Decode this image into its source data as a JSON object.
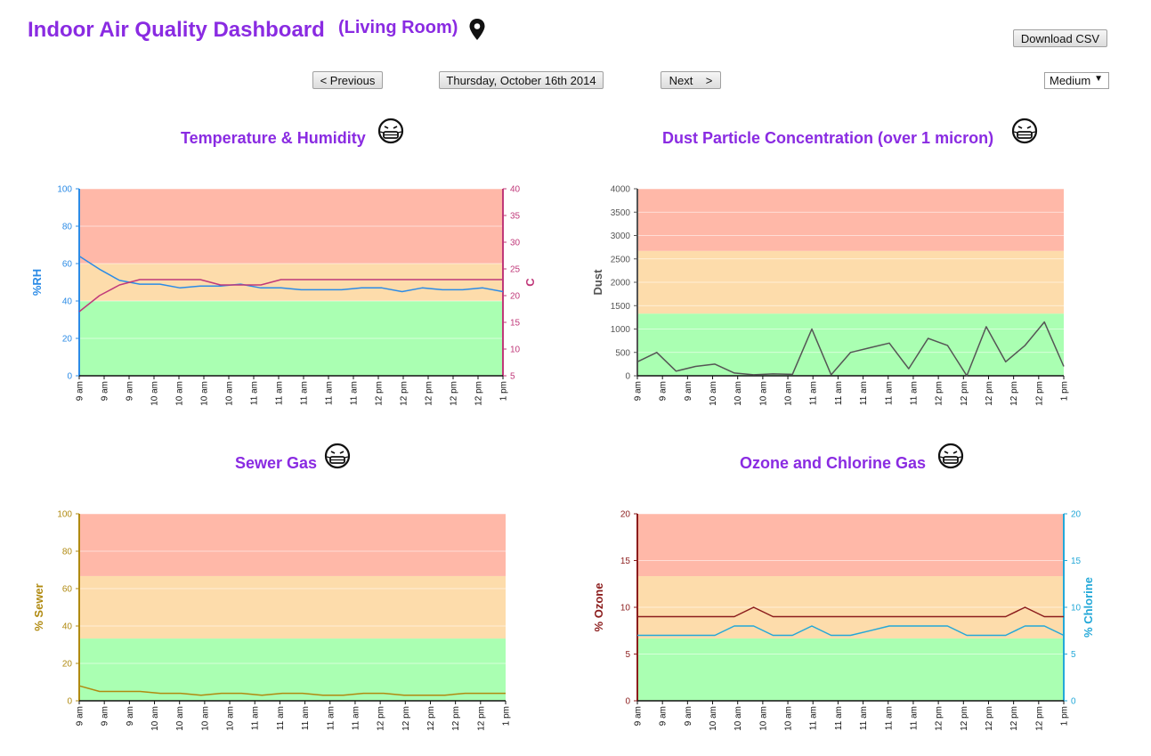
{
  "header": {
    "title": "Indoor Air Quality Dashboard",
    "location": "(Living Room)",
    "download_label": "Download CSV",
    "prev_label": "< Previous",
    "date_label": "Thursday, October 16th 2014",
    "next_label": "Next    >",
    "resolution_selected": "Medium"
  },
  "colors": {
    "title": "#8a2be2",
    "zone_red": "#ffb8a8",
    "zone_orange": "#fddcab",
    "zone_green": "#aaffb2",
    "humidity": "#2b8be6",
    "temperature": "#c0397a",
    "dust": "#555555",
    "sewer": "#b08a10",
    "ozone": "#8b1c1c",
    "chlorine": "#23a8d8"
  },
  "icons": {
    "location": "map-pin-icon",
    "status": "masked-face-icon"
  },
  "time_labels": [
    "9 am",
    "9 am",
    "9 am",
    "10 am",
    "10 am",
    "10 am",
    "10 am",
    "11 am",
    "11 am",
    "11 am",
    "11 am",
    "11 am",
    "12 pm",
    "12 pm",
    "12 pm",
    "12 pm",
    "12 pm",
    "1 pm"
  ],
  "chart_data": [
    {
      "type": "line",
      "title": "Temperature & Humidity",
      "ylabel": "%RH",
      "y2label": "C",
      "ylim": [
        0,
        100
      ],
      "y2lim": [
        5,
        40
      ],
      "yticks": [
        0,
        20,
        40,
        60,
        80,
        100
      ],
      "y2ticks": [
        5,
        10,
        15,
        20,
        25,
        30,
        35,
        40
      ],
      "zones": [
        [
          0,
          40,
          "green"
        ],
        [
          40,
          60,
          "orange"
        ],
        [
          60,
          100,
          "red"
        ]
      ],
      "series": [
        {
          "axis": "left",
          "color": "#2b8be6",
          "values": [
            64,
            57,
            51,
            49,
            49,
            47,
            48,
            48,
            49,
            47,
            47,
            46,
            46,
            46,
            47,
            47,
            45,
            47,
            46,
            46,
            47,
            45
          ]
        },
        {
          "axis": "right",
          "color": "#c0397a",
          "values": [
            17,
            20,
            22,
            23,
            23,
            23,
            23,
            22,
            22,
            22,
            23,
            23,
            23,
            23,
            23,
            23,
            23,
            23,
            23,
            23,
            23,
            23
          ]
        }
      ]
    },
    {
      "type": "line",
      "title": "Dust Particle Concentration (over 1 micron)",
      "ylabel": "Dust",
      "ylim": [
        0,
        4000
      ],
      "yticks": [
        0,
        500,
        1000,
        1500,
        2000,
        2500,
        3000,
        3500,
        4000
      ],
      "zones": [
        [
          0,
          1330,
          "green"
        ],
        [
          1330,
          2670,
          "orange"
        ],
        [
          2670,
          4000,
          "red"
        ]
      ],
      "series": [
        {
          "axis": "left",
          "color": "#555555",
          "values": [
            300,
            500,
            100,
            200,
            250,
            60,
            20,
            40,
            30,
            1000,
            20,
            500,
            600,
            700,
            150,
            800,
            650,
            0,
            1050,
            300,
            650,
            1150,
            200
          ]
        }
      ]
    },
    {
      "type": "line",
      "title": "Sewer Gas",
      "ylabel": "% Sewer",
      "ylim": [
        0,
        100
      ],
      "yticks": [
        0,
        20,
        40,
        60,
        80,
        100
      ],
      "zones": [
        [
          0,
          33.3,
          "green"
        ],
        [
          33.3,
          66.7,
          "orange"
        ],
        [
          66.7,
          100,
          "red"
        ]
      ],
      "series": [
        {
          "axis": "left",
          "color": "#b08a10",
          "values": [
            8,
            5,
            5,
            5,
            4,
            4,
            3,
            4,
            4,
            3,
            4,
            4,
            3,
            3,
            4,
            4,
            3,
            3,
            3,
            4,
            4,
            4
          ]
        }
      ]
    },
    {
      "type": "line",
      "title": "Ozone and Chlorine Gas",
      "ylabel": "% Ozone",
      "y2label": "% Chlorine",
      "ylim": [
        0,
        20
      ],
      "y2lim": [
        0,
        20
      ],
      "yticks": [
        0,
        5,
        10,
        15,
        20
      ],
      "y2ticks": [
        0,
        5,
        10,
        15,
        20
      ],
      "zones": [
        [
          0,
          6.67,
          "green"
        ],
        [
          6.67,
          13.33,
          "orange"
        ],
        [
          13.33,
          20,
          "red"
        ]
      ],
      "series": [
        {
          "axis": "left",
          "color": "#8b1c1c",
          "values": [
            9,
            9,
            9,
            9,
            9,
            9,
            10,
            9,
            9,
            9,
            9,
            9,
            9,
            9,
            9,
            9,
            9,
            9,
            9,
            9,
            10,
            9,
            9
          ]
        },
        {
          "axis": "right",
          "color": "#23a8d8",
          "values": [
            7,
            7,
            7,
            7,
            7,
            8,
            8,
            7,
            7,
            8,
            7,
            7,
            7.5,
            8,
            8,
            8,
            8,
            7,
            7,
            7,
            8,
            8,
            7
          ]
        }
      ]
    }
  ]
}
